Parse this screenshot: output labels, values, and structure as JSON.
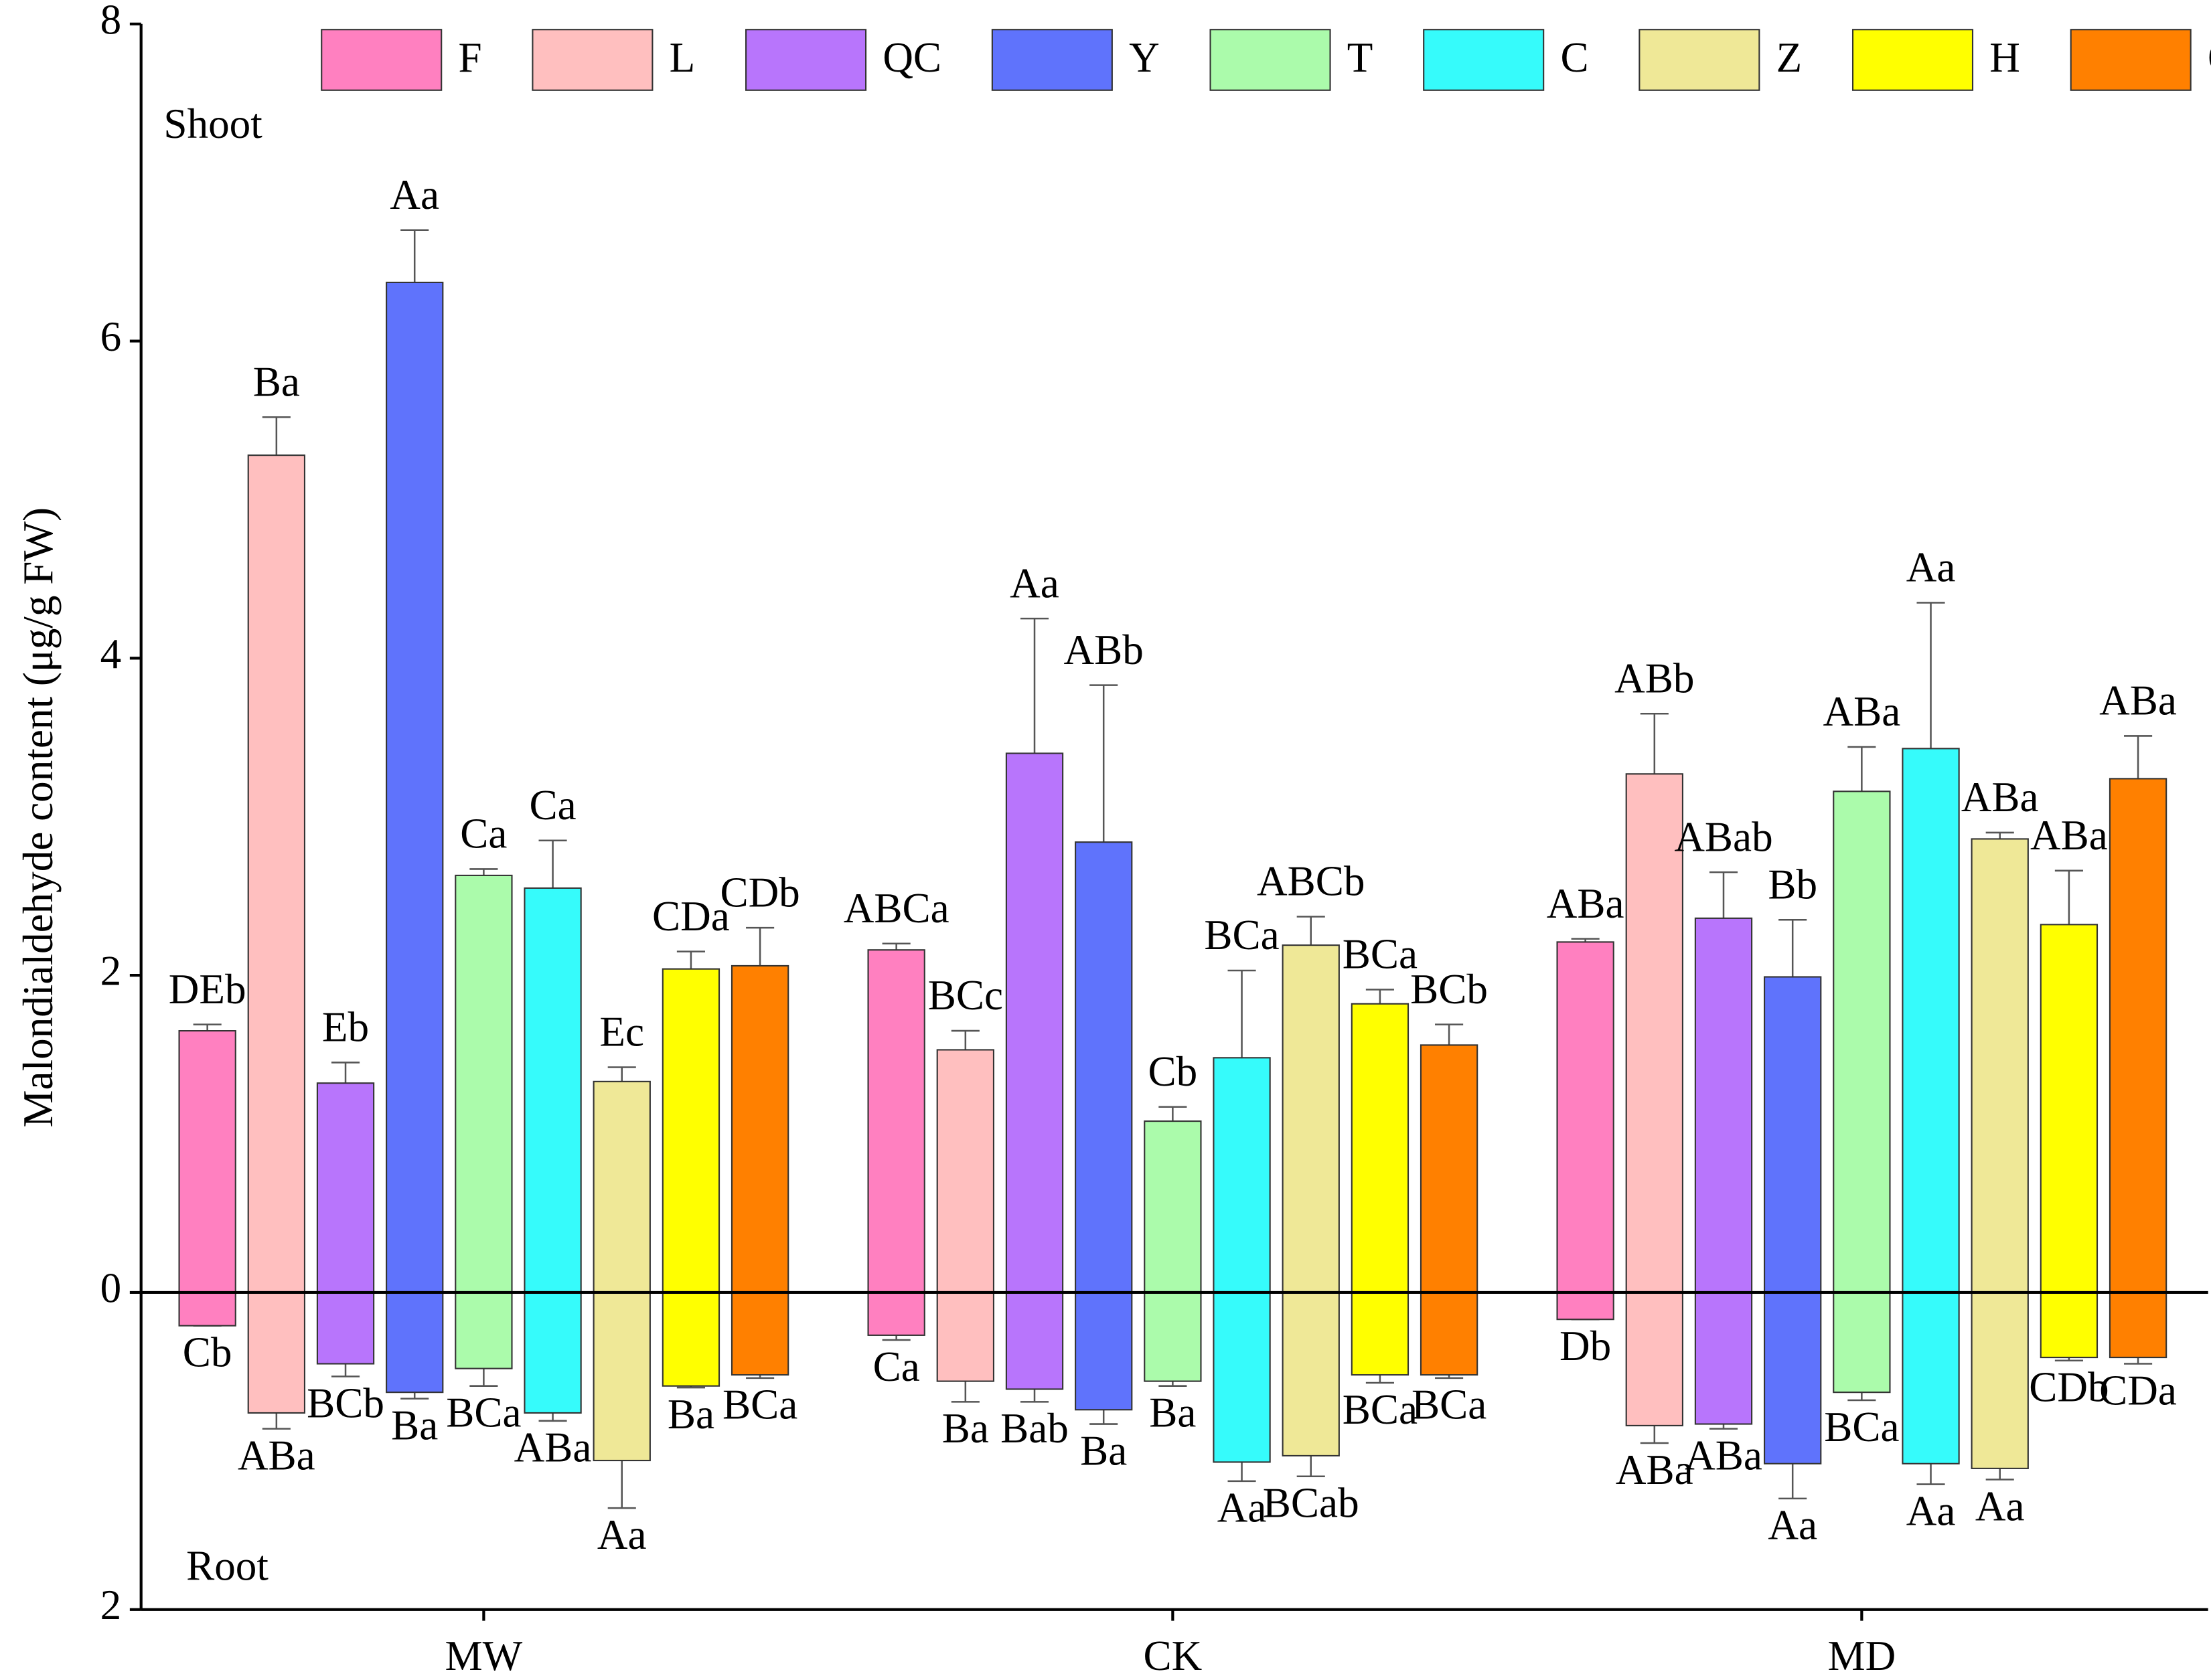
{
  "chart_data": {
    "type": "bar",
    "y_label": "Malondialdehyde content (μg/g  FW)",
    "annotations": [
      "Shoot",
      "Root"
    ],
    "categories": [
      "MW",
      "CK",
      "MD"
    ],
    "ylim": [
      -2,
      8
    ],
    "yticks": [
      {
        "value": -2,
        "label": "2"
      },
      0,
      2,
      4,
      6,
      8
    ],
    "series": [
      {
        "name": "F",
        "color": "#ff80c0",
        "values": [
          1.65,
          2.16,
          2.21
        ],
        "errors": [
          0.04,
          0.04,
          0.02
        ],
        "letters": [
          "DEb",
          "ABCa",
          "ABa"
        ],
        "root_values": [
          -0.21,
          -0.27,
          -0.17
        ],
        "root_errors": [
          0,
          0.03,
          0
        ],
        "root_letters": [
          "Cb",
          "Ca",
          "Db"
        ]
      },
      {
        "name": "L",
        "color": "#ffbfbf",
        "values": [
          5.28,
          1.53,
          3.27
        ],
        "errors": [
          0.24,
          0.12,
          0.38
        ],
        "letters": [
          "Ba",
          "BCc",
          "ABb"
        ],
        "root_values": [
          -0.76,
          -0.56,
          -0.84
        ],
        "root_errors": [
          0.1,
          0.13,
          0.11
        ],
        "root_letters": [
          "ABa",
          "Ba",
          "ABa"
        ]
      },
      {
        "name": "QC",
        "color": "#b875fc",
        "values": [
          1.32,
          3.4,
          2.36
        ],
        "errors": [
          0.13,
          0.85,
          0.29
        ],
        "letters": [
          "Eb",
          "Aa",
          "ABab"
        ],
        "root_values": [
          -0.45,
          -0.61,
          -0.83
        ],
        "root_errors": [
          0.08,
          0.08,
          0.03
        ],
        "root_letters": [
          "BCb",
          "Bab",
          "ABa"
        ]
      },
      {
        "name": "Y",
        "color": "#5f73fc",
        "values": [
          6.37,
          2.84,
          1.99
        ],
        "errors": [
          0.33,
          0.99,
          0.36
        ],
        "letters": [
          "Aa",
          "ABb",
          "Bb"
        ],
        "root_values": [
          -0.63,
          -0.74,
          -1.08
        ],
        "root_errors": [
          0.04,
          0.09,
          0.22
        ],
        "root_letters": [
          "Ba",
          "Ba",
          "Aa"
        ]
      },
      {
        "name": "T",
        "color": "#abfbab",
        "values": [
          2.63,
          1.08,
          3.16
        ],
        "errors": [
          0.04,
          0.09,
          0.28
        ],
        "letters": [
          "Ca",
          "Cb",
          "ABa"
        ],
        "root_values": [
          -0.48,
          -0.56,
          -0.63
        ],
        "root_errors": [
          0.11,
          0.03,
          0.05
        ],
        "root_letters": [
          "BCa",
          "Ba",
          "BCa"
        ]
      },
      {
        "name": "C",
        "color": "#36fbfb",
        "values": [
          2.55,
          1.48,
          3.43
        ],
        "errors": [
          0.3,
          0.55,
          0.92
        ],
        "letters": [
          "Ca",
          "BCa",
          "Aa"
        ],
        "root_values": [
          -0.76,
          -1.07,
          -1.08
        ],
        "root_errors": [
          0.05,
          0.12,
          0.13
        ],
        "root_letters": [
          "ABa",
          "Aa",
          "Aa"
        ]
      },
      {
        "name": "Z",
        "color": "#efe897",
        "values": [
          1.33,
          2.19,
          2.86
        ],
        "errors": [
          0.09,
          0.18,
          0.04
        ],
        "letters": [
          "Ec",
          "ABCb",
          "ABa"
        ],
        "root_values": [
          -1.06,
          -1.03,
          -1.11
        ],
        "root_errors": [
          0.3,
          0.13,
          0.07
        ],
        "root_letters": [
          "Aa",
          "BCab",
          "Aa"
        ]
      },
      {
        "name": "H",
        "color": "#ffff00",
        "values": [
          2.04,
          1.82,
          2.32
        ],
        "errors": [
          0.11,
          0.09,
          0.34
        ],
        "letters": [
          "CDa",
          "BCa",
          "ABa"
        ],
        "root_values": [
          -0.59,
          -0.52,
          -0.41
        ],
        "root_errors": [
          0.01,
          0.05,
          0.02
        ],
        "root_letters": [
          "Ba",
          "BCa",
          "CDb"
        ]
      },
      {
        "name": "QT",
        "color": "#ff8000",
        "values": [
          2.06,
          1.56,
          3.24
        ],
        "errors": [
          0.24,
          0.13,
          0.27
        ],
        "letters": [
          "CDb",
          "BCb",
          "ABa"
        ],
        "root_values": [
          -0.52,
          -0.52,
          -0.41
        ],
        "root_errors": [
          0.02,
          0.02,
          0.04
        ],
        "root_letters": [
          "BCa",
          "BCa",
          "CDa"
        ]
      }
    ]
  }
}
